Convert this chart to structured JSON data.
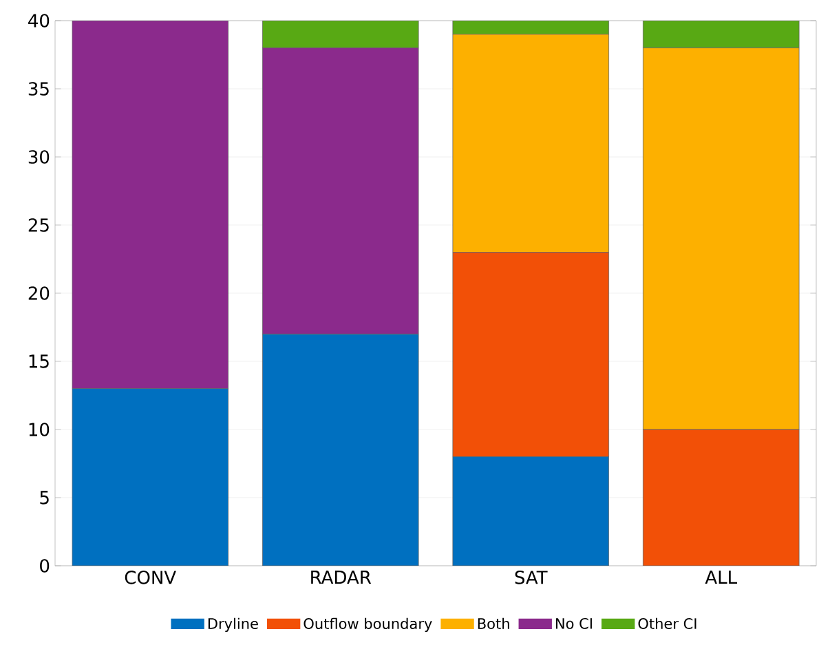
{
  "chart_data": {
    "type": "bar",
    "stacked": true,
    "categories": [
      "CONV",
      "RADAR",
      "SAT",
      "ALL"
    ],
    "series": [
      {
        "name": "Dryline",
        "color": "#0070c0",
        "values": [
          13,
          17,
          8,
          0
        ]
      },
      {
        "name": "Outflow boundary",
        "color": "#f25007",
        "values": [
          0,
          0,
          15,
          10
        ]
      },
      {
        "name": "Both",
        "color": "#fdb000",
        "values": [
          0,
          0,
          16,
          28
        ]
      },
      {
        "name": "No CI",
        "color": "#8b2a8c",
        "values": [
          27,
          21,
          0,
          0
        ]
      },
      {
        "name": "Other CI",
        "color": "#58a914",
        "values": [
          0,
          2,
          1,
          2
        ]
      }
    ],
    "ylim": [
      0,
      40
    ],
    "yticks": [
      0,
      5,
      10,
      15,
      20,
      25,
      30,
      35,
      40
    ],
    "grid": "y",
    "legend": "bottom"
  }
}
